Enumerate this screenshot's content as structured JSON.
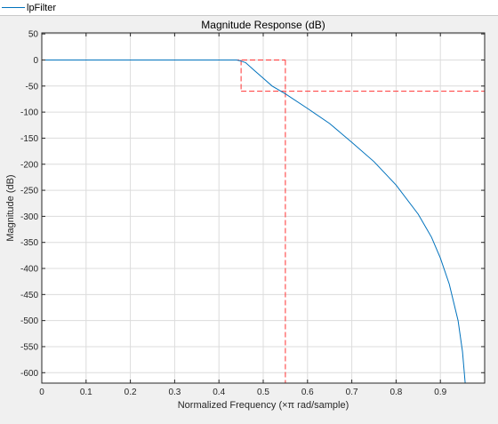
{
  "legend": {
    "label": "lpFilter",
    "color": "#0072bd"
  },
  "chart_data": {
    "type": "line",
    "title": "Magnitude Response (dB)",
    "xlabel": "Normalized Frequency (×π rad/sample)",
    "ylabel": "Magnitude (dB)",
    "xlim": [
      0,
      1
    ],
    "ylim": [
      -620,
      52
    ],
    "grid": true,
    "xticks": [
      0,
      0.1,
      0.2,
      0.3,
      0.4,
      0.5,
      0.6,
      0.7,
      0.8,
      0.9
    ],
    "xtick_labels": [
      "0",
      "0.1",
      "0.2",
      "0.3",
      "0.4",
      "0.5",
      "0.6",
      "0.7",
      "0.8",
      "0.9"
    ],
    "yticks": [
      50,
      0,
      -50,
      -100,
      -150,
      -200,
      -250,
      -300,
      -350,
      -400,
      -450,
      -500,
      -550,
      -600
    ],
    "ytick_labels": [
      "50",
      "0",
      "-50",
      "-100",
      "-150",
      "-200",
      "-250",
      "-300",
      "-350",
      "-400",
      "-450",
      "-500",
      "-550",
      "-600"
    ],
    "series": [
      {
        "name": "lpFilter",
        "color": "#0072bd",
        "x": [
          0,
          0.1,
          0.2,
          0.3,
          0.4,
          0.44,
          0.45,
          0.46,
          0.48,
          0.5,
          0.52,
          0.55,
          0.6,
          0.65,
          0.7,
          0.75,
          0.8,
          0.85,
          0.88,
          0.9,
          0.92,
          0.94,
          0.95,
          0.956
        ],
        "y": [
          0,
          0,
          0,
          0,
          0,
          0,
          -2,
          -5,
          -20,
          -35,
          -50,
          -65,
          -93,
          -122,
          -158,
          -195,
          -240,
          -296,
          -340,
          -380,
          -430,
          -500,
          -560,
          -620
        ]
      }
    ],
    "mask": {
      "color": "#ff3333",
      "x": [
        0,
        0.45,
        0.45,
        0.55,
        0.55,
        1.0
      ],
      "upper": [
        0,
        0,
        -60,
        -60,
        -60,
        -60
      ],
      "verticals": [
        {
          "x": 0.45,
          "y": [
            0,
            -60
          ]
        },
        {
          "x": 0.55,
          "y": [
            0,
            -620
          ]
        }
      ],
      "segments": [
        {
          "x": [
            0,
            0.55
          ],
          "y": [
            0,
            0
          ]
        },
        {
          "x": [
            0.45,
            1.0
          ],
          "y": [
            -60,
            -60
          ]
        }
      ]
    }
  }
}
